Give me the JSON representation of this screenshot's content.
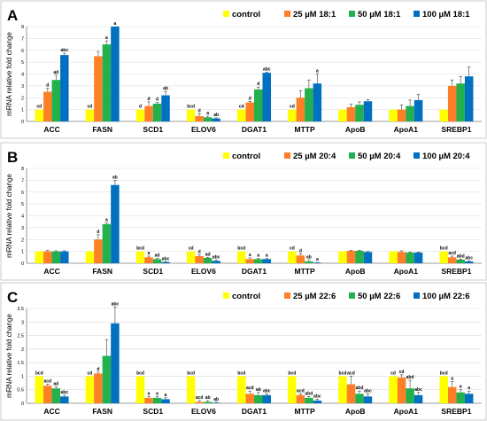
{
  "y_axis_label": "mRNA relative fold change",
  "colors": [
    "#ffff00",
    "#ff7f27",
    "#22b14c",
    "#0070c0"
  ],
  "chart_data": [
    {
      "type": "bar",
      "panel": "A",
      "categories": [
        "ACC",
        "FASN",
        "SCD1",
        "ELOV6",
        "DGAT1",
        "MTTP",
        "ApoB",
        "ApoA1",
        "SREBP1"
      ],
      "ylim": [
        0,
        8
      ],
      "yticks": [
        0,
        1,
        2,
        3,
        4,
        5,
        6,
        7,
        8
      ],
      "grid": true,
      "legend_position": "top-right",
      "series": [
        {
          "name": "control",
          "values": [
            1,
            1,
            1,
            1,
            1,
            1,
            1,
            1,
            1
          ],
          "errors": [
            0,
            0,
            0,
            0,
            0,
            0,
            0,
            0,
            0
          ]
        },
        {
          "name": "25 µM 18:1",
          "values": [
            2.5,
            5.5,
            1.3,
            0.45,
            1.6,
            2.0,
            1.2,
            1.0,
            3.0
          ],
          "errors": [
            0.3,
            0.4,
            0.35,
            0.2,
            0.1,
            0.6,
            0.25,
            0.4,
            0.5
          ]
        },
        {
          "name": "50 µM 18:1",
          "values": [
            3.5,
            6.5,
            1.5,
            0.35,
            2.7,
            2.8,
            1.4,
            1.3,
            3.2
          ],
          "errors": [
            0.4,
            0.3,
            0.1,
            0.1,
            0.2,
            0.7,
            0.25,
            0.5,
            0.6
          ]
        },
        {
          "name": "100 µM 18:1",
          "values": [
            5.6,
            8.0,
            2.2,
            0.25,
            4.1,
            3.2,
            1.7,
            1.8,
            3.8
          ],
          "errors": [
            0.15,
            0,
            0.35,
            0.05,
            0.05,
            0.8,
            0.15,
            0.5,
            0.8
          ]
        }
      ],
      "annotations": [
        [
          "cd",
          "d",
          "ad",
          "abc"
        ],
        [
          "cd",
          "",
          "a",
          "a"
        ],
        [
          "d",
          "d",
          "d",
          "ab"
        ],
        [
          "bcd",
          "d",
          "a",
          "ab"
        ],
        [
          "cd",
          "d",
          "d",
          "abc"
        ],
        [
          "cd",
          "",
          "",
          "a"
        ],
        [
          "",
          "",
          "",
          ""
        ],
        [
          "",
          "",
          "",
          ""
        ],
        [
          "",
          "",
          "",
          ""
        ]
      ]
    },
    {
      "type": "bar",
      "panel": "B",
      "categories": [
        "ACC",
        "FASN",
        "SCD1",
        "ELOV6",
        "DGAT1",
        "MTTP",
        "ApoB",
        "ApoA1",
        "SREBP1"
      ],
      "ylim": [
        0,
        8
      ],
      "yticks": [
        0,
        1,
        2,
        3,
        4,
        5,
        6,
        7,
        8
      ],
      "grid": true,
      "legend_position": "top-right",
      "series": [
        {
          "name": "control",
          "values": [
            1,
            1,
            1,
            1,
            1,
            1,
            1,
            1,
            1
          ],
          "errors": [
            0,
            0,
            0,
            0,
            0,
            0,
            0,
            0,
            0
          ]
        },
        {
          "name": "25 µM 20:4",
          "values": [
            1.0,
            2.0,
            0.5,
            0.6,
            0.35,
            0.65,
            1.05,
            0.95,
            0.5
          ],
          "errors": [
            0.1,
            0.4,
            0.1,
            0.1,
            0.1,
            0.15,
            0.05,
            0.1,
            0.1
          ]
        },
        {
          "name": "50 µM 20:4",
          "values": [
            1.0,
            3.3,
            0.35,
            0.45,
            0.35,
            0.15,
            1.05,
            0.9,
            0.3
          ],
          "errors": [
            0.05,
            0.1,
            0.05,
            0.05,
            0.05,
            0.1,
            0.05,
            0.05,
            0.05
          ]
        },
        {
          "name": "100 µM 20:4",
          "values": [
            1.0,
            6.6,
            0.1,
            0.2,
            0.35,
            0.05,
            0.95,
            0.9,
            0.15
          ],
          "errors": [
            0.05,
            0.4,
            0.02,
            0.05,
            0.05,
            0.02,
            0.05,
            0.05,
            0.05
          ]
        }
      ],
      "annotations": [
        [
          "",
          "",
          "",
          ""
        ],
        [
          "",
          "d",
          "a",
          "ab"
        ],
        [
          "bcd",
          "a",
          "ad",
          "abc"
        ],
        [
          "cd",
          "d",
          "ad",
          "abc"
        ],
        [
          "bcd",
          "a",
          "a",
          "a"
        ],
        [
          "cd",
          "d",
          "ab",
          "a"
        ],
        [
          "",
          "",
          "",
          ""
        ],
        [
          "",
          "",
          "",
          ""
        ],
        [
          "bcd",
          "acd",
          "abd",
          "abc"
        ]
      ]
    },
    {
      "type": "bar",
      "panel": "C",
      "categories": [
        "ACC",
        "FASN",
        "SCD1",
        "ELOV6",
        "DGAT1",
        "MTTP",
        "ApoB",
        "ApoA1",
        "SREBP1"
      ],
      "ylim": [
        0,
        3.5
      ],
      "yticks": [
        0,
        0.5,
        1,
        1.5,
        2,
        2.5,
        3,
        3.5
      ],
      "grid": true,
      "legend_position": "top-right",
      "series": [
        {
          "name": "control",
          "values": [
            1,
            1,
            1,
            1,
            1,
            1,
            1,
            1,
            1
          ],
          "errors": [
            0,
            0,
            0,
            0,
            0,
            0,
            0,
            0,
            0
          ]
        },
        {
          "name": "25 µM 22:6",
          "values": [
            0.65,
            1.1,
            0.2,
            0.05,
            0.35,
            0.3,
            0.7,
            0.95,
            0.6
          ],
          "errors": [
            0.05,
            0.05,
            0.05,
            0.05,
            0.1,
            0.05,
            0.3,
            0.1,
            0.2
          ]
        },
        {
          "name": "50 µM 22:6",
          "values": [
            0.55,
            1.75,
            0.2,
            0.05,
            0.3,
            0.2,
            0.35,
            0.55,
            0.4
          ],
          "errors": [
            0.05,
            0.6,
            0.05,
            0.05,
            0.1,
            0.05,
            0.1,
            0.3,
            0.1
          ]
        },
        {
          "name": "100 µM 22:6",
          "values": [
            0.25,
            2.95,
            0.15,
            0.02,
            0.3,
            0.1,
            0.25,
            0.3,
            0.35
          ],
          "errors": [
            0.05,
            0.6,
            0.05,
            0.02,
            0.05,
            0.05,
            0.1,
            0.1,
            0.1
          ]
        }
      ],
      "annotations": [
        [
          "bcd",
          "acd",
          "ad",
          "abc"
        ],
        [
          "cd",
          "d",
          "",
          "abc"
        ],
        [
          "bcd",
          "a",
          "a",
          "a"
        ],
        [
          "bcd",
          "acd",
          "ab",
          "ab"
        ],
        [
          "bcd",
          "acd",
          "ab",
          "abc"
        ],
        [
          "bcd",
          "acd",
          "abd",
          "abc"
        ],
        [
          "bcd",
          "acd",
          "abd",
          "abc"
        ],
        [
          "cd",
          "cd",
          "abd",
          "abc"
        ],
        [
          "bcd",
          "a",
          "a",
          "a"
        ]
      ]
    }
  ]
}
